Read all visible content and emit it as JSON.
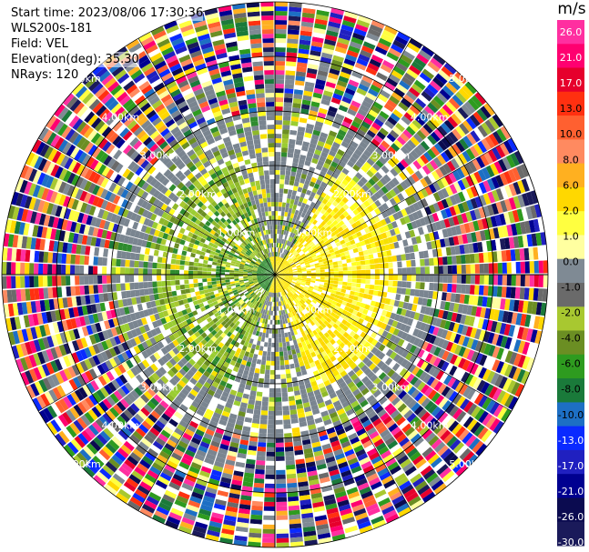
{
  "header": {
    "start_time": "Start time: 2023/08/06 17:30:36",
    "instrument": "WLS200s-181",
    "field": "Field: VEL",
    "elevation": "Elevation(deg): 35.30",
    "nrays": "NRays: 120"
  },
  "chart_data": {
    "type": "heatmap",
    "subtype": "polar-ppi",
    "title": "",
    "field": "VEL",
    "n_rays": 120,
    "elevation_deg": 35.3,
    "range_rings_km": [
      1.0,
      2.0,
      3.0,
      4.0,
      5.0
    ],
    "range_ring_labels": {
      "1.00km": [
        "1.00km",
        "1.00km",
        "1.00km",
        "1.00km"
      ],
      "2.00km": [
        "2.00km",
        "2.00km",
        "2.00km",
        "2.00km"
      ],
      "3.00km": [
        "3.00km",
        "3.00km",
        "3.00km",
        "3.00km"
      ],
      "4.00km": [
        "4.00km",
        "4.00km",
        "4.00km",
        "4.00km"
      ],
      "5.00km": [
        "5.00km",
        "5.00km",
        "5.00km",
        "5.00km"
      ]
    },
    "spoke_angles_deg": [
      0,
      30,
      60,
      90,
      120,
      150,
      180,
      210,
      240,
      270,
      300,
      330
    ],
    "colorbar": {
      "unit": "m/s",
      "ticks": [
        "26.0",
        "21.0",
        "17.0",
        "13.0",
        "10.0",
        "8.0",
        "6.0",
        "2.0",
        "1.0",
        "0.0",
        "-1.0",
        "-2.0",
        "-4.0",
        "-6.0",
        "-8.0",
        "-10.0",
        "-13.0",
        "-17.0",
        "-21.0",
        "-26.0",
        "-30.0"
      ],
      "colors": [
        "#ff2fa0",
        "#ff0070",
        "#e6002c",
        "#ff3010",
        "#ff6030",
        "#ff8a60",
        "#ffb020",
        "#ffd800",
        "#ffff40",
        "#ffffa0",
        "#7f8a94",
        "#6a6a6a",
        "#a8c830",
        "#6b8e23",
        "#2e9b1f",
        "#1a7a3a",
        "#1d6fc4",
        "#0a2aff",
        "#2020c0",
        "#000090",
        "#0b0b50",
        "#1a1a5a"
      ]
    },
    "sectors": [
      {
        "region": "inner",
        "range_km": [
          0,
          2.0
        ],
        "dominant": "gray",
        "note": ""
      },
      {
        "region": "north-west",
        "dominant": "green"
      },
      {
        "region": "south-east",
        "dominant": "yellow"
      },
      {
        "region": "outer",
        "range_km": [
          3.0,
          5.0
        ],
        "dominant": "mixed"
      }
    ]
  }
}
